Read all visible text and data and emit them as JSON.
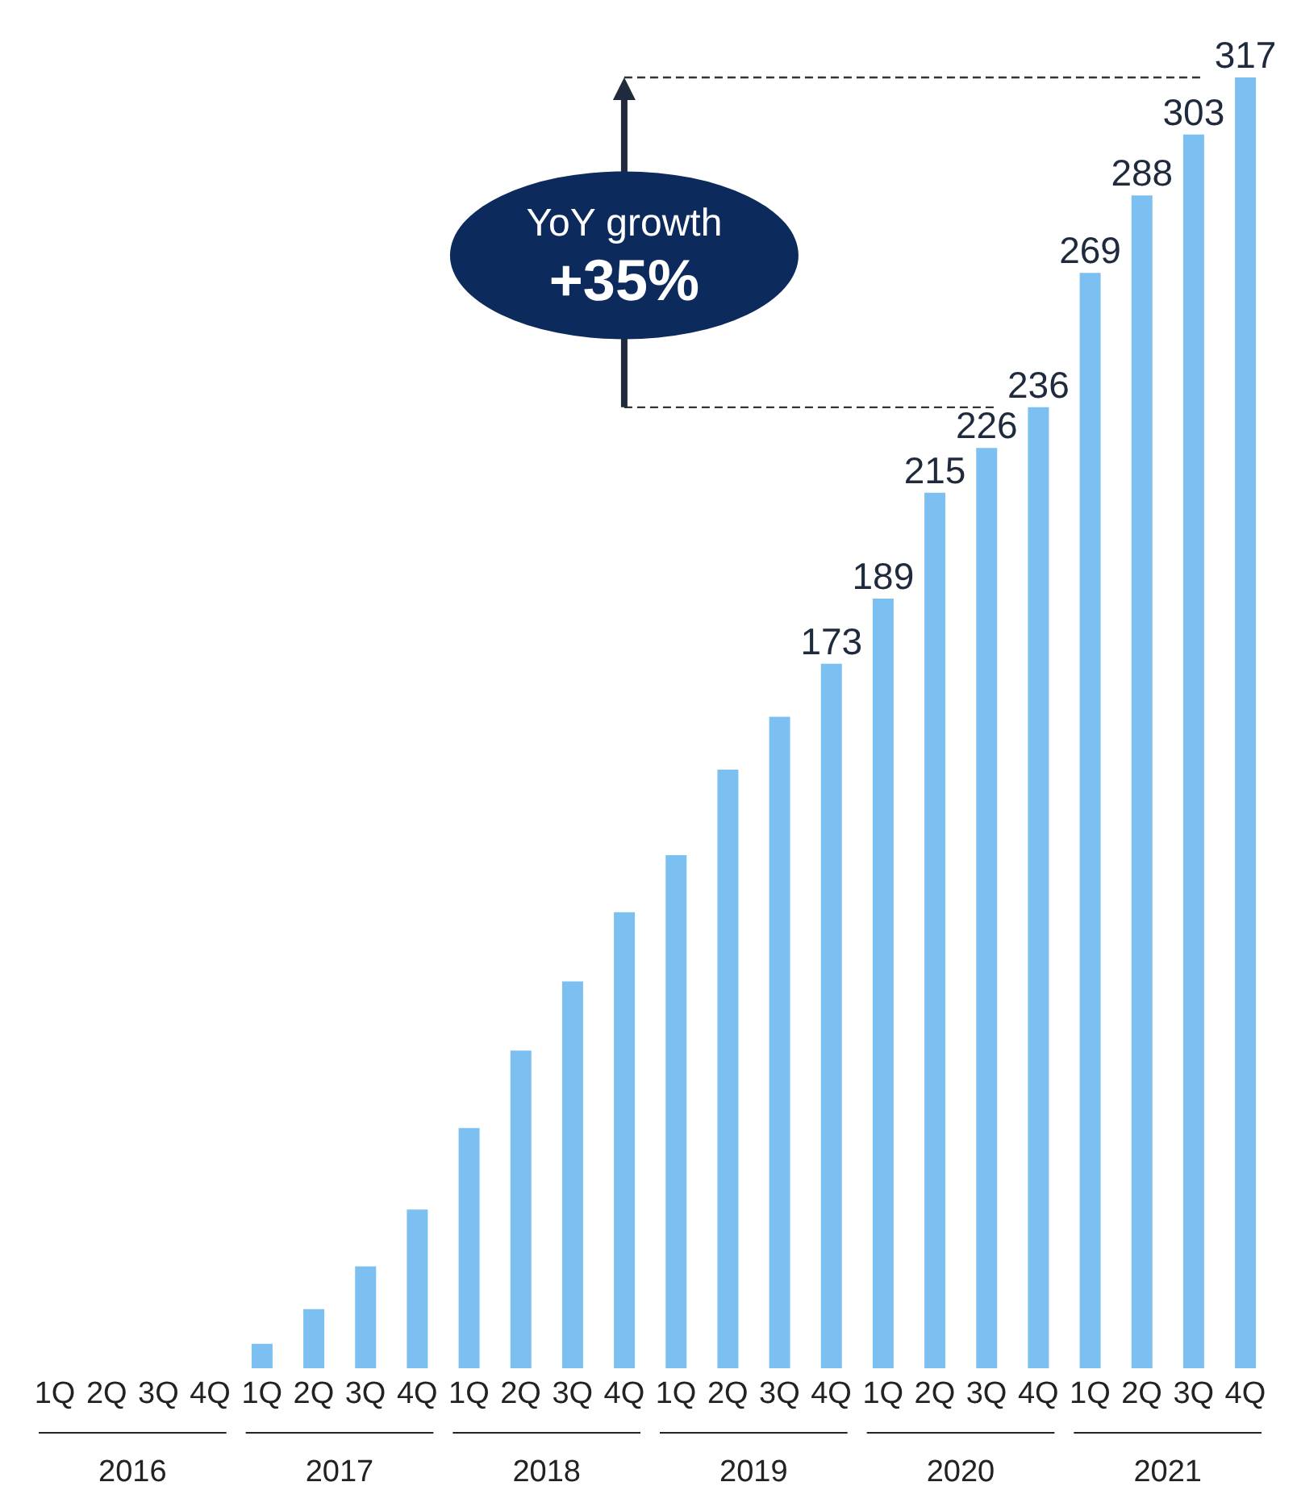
{
  "chart_data": {
    "type": "bar",
    "categories": [
      "1Q",
      "2Q",
      "3Q",
      "4Q",
      "1Q",
      "2Q",
      "3Q",
      "4Q",
      "1Q",
      "2Q",
      "3Q",
      "4Q",
      "1Q",
      "2Q",
      "3Q",
      "4Q",
      "1Q",
      "2Q",
      "3Q",
      "4Q",
      "1Q",
      "2Q",
      "3Q",
      "4Q"
    ],
    "values": [
      0,
      0,
      0,
      0,
      6,
      14.5,
      25,
      39,
      59,
      78,
      95,
      112,
      126,
      147,
      160,
      173,
      189,
      215,
      226,
      236,
      269,
      288,
      303,
      317
    ],
    "color": "#7cc0f1",
    "value_labels": [
      null,
      null,
      null,
      null,
      null,
      null,
      null,
      null,
      null,
      null,
      null,
      null,
      null,
      null,
      null,
      "173",
      "189",
      "215",
      "226",
      "236",
      "269",
      "288",
      "303",
      "317"
    ],
    "ref_lines": [
      {
        "axis": "y",
        "value": 236,
        "color": "#333333",
        "line_style": "dashed"
      },
      {
        "axis": "y",
        "value": 317,
        "color": "#333333",
        "line_style": "dashed"
      }
    ],
    "annotations": [
      "YoY growth",
      "+35%",
      "2016",
      "2017",
      "2018",
      "2019",
      "2020",
      "2021"
    ],
    "grid": false,
    "legend": false
  }
}
